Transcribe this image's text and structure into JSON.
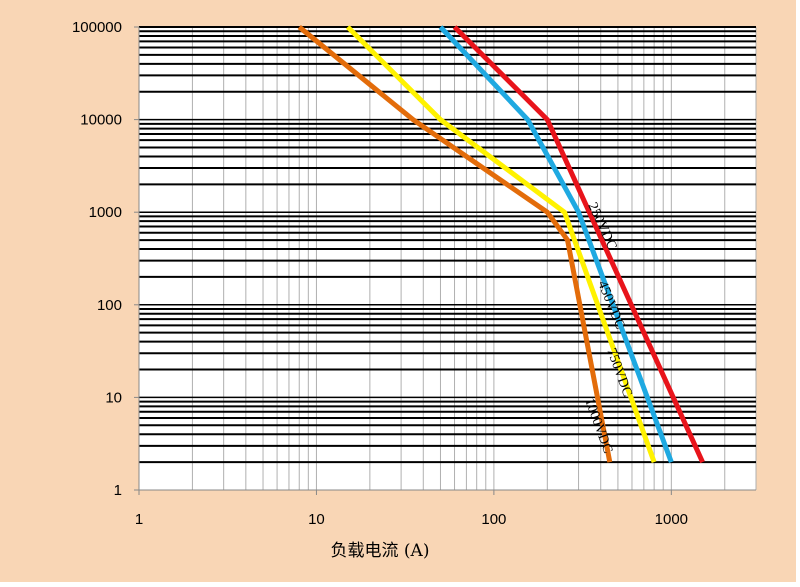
{
  "chart_data": {
    "type": "line",
    "title": "",
    "xlabel": "负载电流 (A)",
    "ylabel": "",
    "xscale": "log",
    "yscale": "log",
    "xlim": [
      1,
      3000
    ],
    "ylim": [
      1,
      100000
    ],
    "grid": true,
    "xticks": [
      "1",
      "10",
      "100",
      "1000"
    ],
    "xtick_values": [
      1,
      10,
      100,
      1000
    ],
    "yticks": [
      "1",
      "10",
      "100",
      "1000",
      "10000",
      "100000"
    ],
    "ytick_values": [
      1,
      10,
      100,
      1000,
      10000,
      100000
    ],
    "series": [
      {
        "name": "250VDC",
        "color": "#e8141b",
        "x": [
          60,
          200,
          1500
        ],
        "y": [
          100000,
          10000,
          2
        ]
      },
      {
        "name": "450VDC",
        "color": "#1fa9e1",
        "x": [
          50,
          155,
          300,
          1000
        ],
        "y": [
          100000,
          10000,
          1000,
          2
        ]
      },
      {
        "name": "750VDC",
        "color": "#fff200",
        "x": [
          15,
          50,
          250,
          800
        ],
        "y": [
          100000,
          10000,
          1000,
          2
        ]
      },
      {
        "name": "1000VDC",
        "color": "#e36c0a",
        "x": [
          8,
          35,
          200,
          260,
          450
        ],
        "y": [
          100000,
          10000,
          1000,
          500,
          2
        ]
      }
    ]
  }
}
